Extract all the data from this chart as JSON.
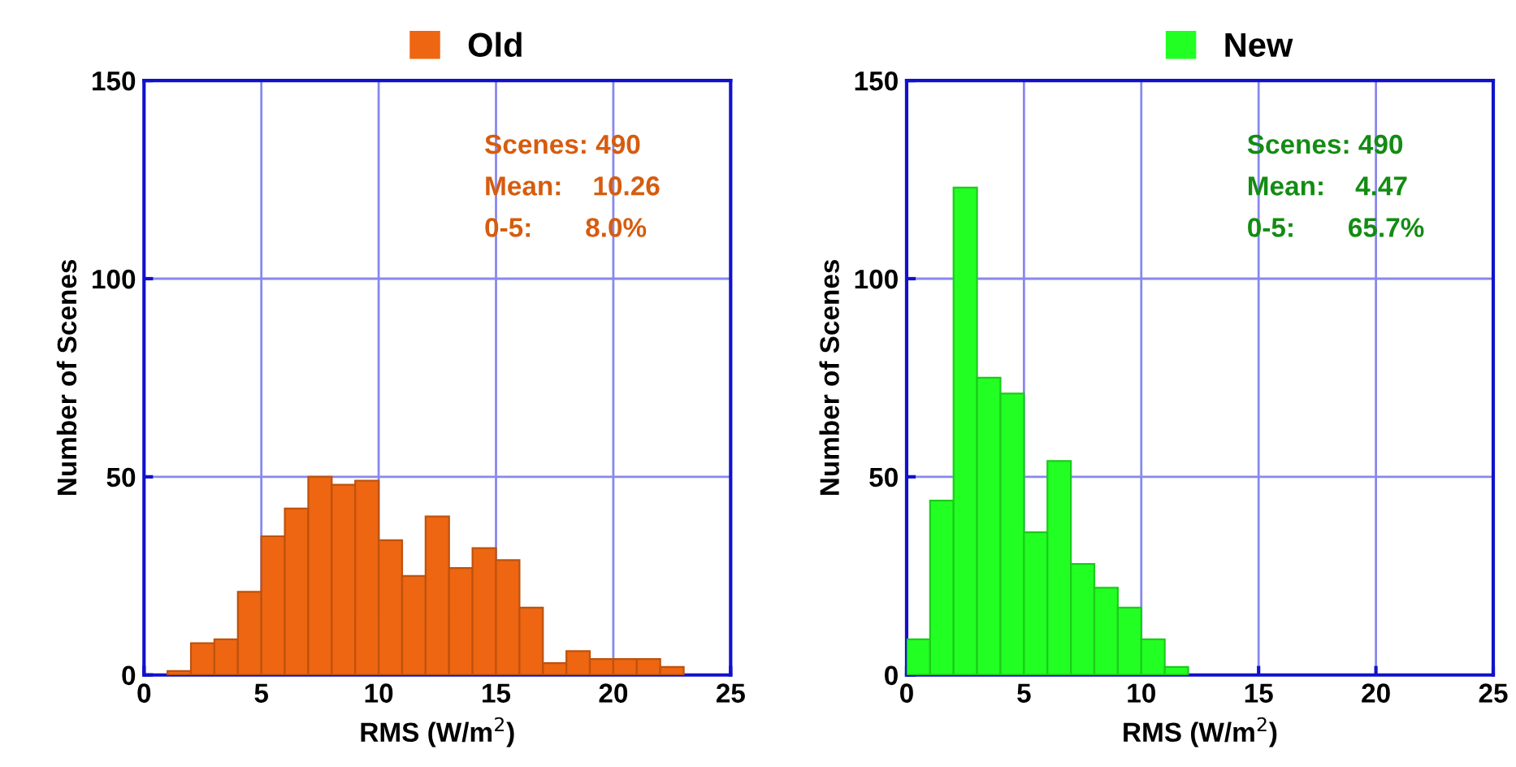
{
  "chart_data": [
    {
      "type": "histogram",
      "xlabel": "RMS (W/m$^{2}$)",
      "ylabel": "Number of Scenes",
      "bins": [
        1,
        2,
        3,
        4,
        5,
        6,
        7,
        8,
        9,
        10,
        11,
        12,
        13,
        14,
        15,
        16,
        17,
        18,
        19,
        20,
        21,
        22,
        23
      ],
      "series": [
        {
          "name": "Old",
          "color": "#ee6611",
          "values": [
            1,
            8,
            9,
            21,
            35,
            42,
            50,
            48,
            49,
            34,
            25,
            40,
            27,
            32,
            29,
            17,
            3,
            6,
            4,
            4,
            4,
            2
          ]
        }
      ],
      "xlim": [
        0,
        25
      ],
      "ylim": [
        0,
        150
      ],
      "xticks": [
        0,
        5,
        10,
        15,
        20,
        25
      ],
      "yticks": [
        0,
        50,
        100,
        150
      ],
      "grid": true,
      "legend": "top",
      "annotations": [
        "Scenes: 490",
        "Mean:    10.26",
        "0-5:       8.0%"
      ]
    },
    {
      "type": "histogram",
      "xlabel": "RMS (W/m$^{2}$)",
      "ylabel": "Number of Scenes",
      "bins": [
        0,
        1,
        2,
        3,
        4,
        5,
        6,
        7,
        8,
        9,
        10,
        11,
        12
      ],
      "series": [
        {
          "name": "New",
          "color": "#22ff22",
          "values": [
            9,
            44,
            123,
            75,
            71,
            36,
            54,
            28,
            22,
            17,
            9,
            2
          ]
        }
      ],
      "xlim": [
        0,
        25
      ],
      "ylim": [
        0,
        150
      ],
      "xticks": [
        0,
        5,
        10,
        15,
        20,
        25
      ],
      "yticks": [
        0,
        50,
        100,
        150
      ],
      "grid": true,
      "legend": "top",
      "annotations": [
        "Scenes: 490",
        "Mean:    4.47",
        "0-5:       65.7%"
      ]
    }
  ]
}
